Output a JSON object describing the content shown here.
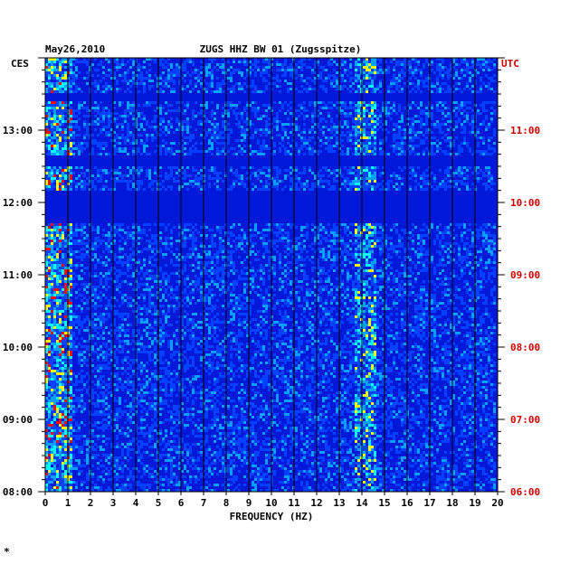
{
  "chart_data": {
    "type": "heatmap",
    "date": "May26,2010",
    "title": "ZUGS HHZ BW 01 (Zugsspitze)",
    "left_zone": "CES",
    "right_zone": "UTC",
    "xlabel": "FREQUENCY (HZ)",
    "xlim": [
      0,
      20
    ],
    "x_ticks": [
      "0",
      "1",
      "2",
      "3",
      "4",
      "5",
      "6",
      "7",
      "8",
      "9",
      "10",
      "11",
      "12",
      "13",
      "14",
      "15",
      "16",
      "17",
      "18",
      "19",
      "20"
    ],
    "left_time_range": [
      "08:00",
      "14:00"
    ],
    "right_time_range": [
      "06:00",
      "12:00"
    ],
    "left_time_labels": [
      "13:00",
      "12:00",
      "11:00",
      "10:00",
      "09:00",
      "08:00"
    ],
    "right_time_labels": [
      "11:00",
      "10:00",
      "09:00",
      "08:00",
      "07:00",
      "06:00"
    ],
    "colormap": [
      "#000080",
      "#0000c8",
      "#0040ff",
      "#00a0ff",
      "#00ffff",
      "#ffff00",
      "#ff0000"
    ],
    "grid": true,
    "footnote": "*"
  }
}
